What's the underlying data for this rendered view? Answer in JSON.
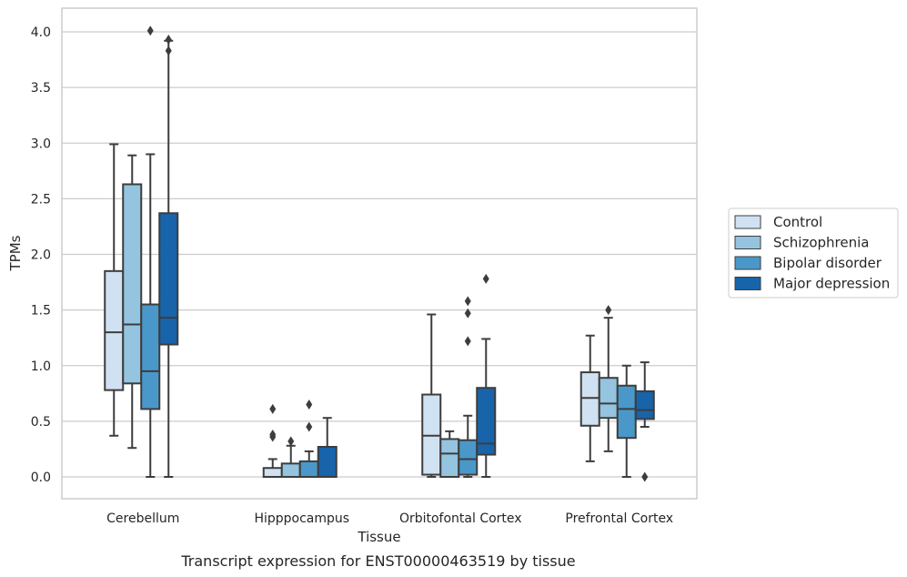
{
  "caption": "Transcript expression for ENST00000463519 by tissue",
  "chart_data": {
    "type": "box",
    "xlabel": "Tissue",
    "ylabel": "TPMs",
    "ylim": [
      -0.2,
      4.22
    ],
    "yticks": [
      0.0,
      0.5,
      1.0,
      1.5,
      2.0,
      2.5,
      3.0,
      3.5,
      4.0
    ],
    "ytick_labels": [
      "0.0",
      "0.5",
      "1.0",
      "1.5",
      "2.0",
      "2.5",
      "3.0",
      "3.5",
      "4.0"
    ],
    "grid": "horizontal",
    "legend_position": "right",
    "categories": [
      "Cerebellum",
      "Hipppocampus",
      "Orbitofontal Cortex",
      "Prefrontal Cortex"
    ],
    "series": [
      {
        "name": "Control",
        "color": "#d0e1f2",
        "boxes": [
          {
            "whislo": 0.37,
            "q1": 0.78,
            "med": 1.3,
            "q3": 1.85,
            "whishi": 2.99,
            "fliers": []
          },
          {
            "whislo": 0.0,
            "q1": 0.0,
            "med": 0.0,
            "q3": 0.08,
            "whishi": 0.16,
            "fliers": [
              0.36,
              0.38,
              0.61
            ]
          },
          {
            "whislo": 0.0,
            "q1": 0.02,
            "med": 0.37,
            "q3": 0.74,
            "whishi": 1.46,
            "fliers": []
          },
          {
            "whislo": 0.14,
            "q1": 0.46,
            "med": 0.71,
            "q3": 0.94,
            "whishi": 1.27,
            "fliers": []
          }
        ]
      },
      {
        "name": "Schizophrenia",
        "color": "#94c4df",
        "boxes": [
          {
            "whislo": 0.26,
            "q1": 0.84,
            "med": 1.37,
            "q3": 2.63,
            "whishi": 2.89,
            "fliers": []
          },
          {
            "whislo": 0.0,
            "q1": 0.0,
            "med": 0.0,
            "q3": 0.12,
            "whishi": 0.28,
            "fliers": [
              0.32
            ]
          },
          {
            "whislo": 0.0,
            "q1": 0.0,
            "med": 0.21,
            "q3": 0.34,
            "whishi": 0.41,
            "fliers": []
          },
          {
            "whislo": 0.23,
            "q1": 0.53,
            "med": 0.66,
            "q3": 0.89,
            "whishi": 1.43,
            "fliers": [
              1.5
            ]
          }
        ]
      },
      {
        "name": "Bipolar disorder",
        "color": "#4a98c9",
        "boxes": [
          {
            "whislo": 0.0,
            "q1": 0.61,
            "med": 0.95,
            "q3": 1.55,
            "whishi": 2.9,
            "fliers": [
              4.01
            ]
          },
          {
            "whislo": 0.0,
            "q1": 0.0,
            "med": 0.0,
            "q3": 0.14,
            "whishi": 0.23,
            "fliers": [
              0.45,
              0.65
            ]
          },
          {
            "whislo": 0.0,
            "q1": 0.02,
            "med": 0.16,
            "q3": 0.33,
            "whishi": 0.55,
            "fliers": [
              1.22,
              1.47,
              1.58
            ]
          },
          {
            "whislo": 0.0,
            "q1": 0.35,
            "med": 0.61,
            "q3": 0.82,
            "whishi": 1.0,
            "fliers": []
          }
        ]
      },
      {
        "name": "Major depression",
        "color": "#1764ab",
        "boxes": [
          {
            "whislo": 0.0,
            "q1": 1.19,
            "med": 1.43,
            "q3": 2.37,
            "whishi": 3.92,
            "fliers": [
              3.83,
              3.93
            ]
          },
          {
            "whislo": 0.0,
            "q1": 0.0,
            "med": 0.0,
            "q3": 0.27,
            "whishi": 0.53,
            "fliers": []
          },
          {
            "whislo": 0.0,
            "q1": 0.2,
            "med": 0.3,
            "q3": 0.8,
            "whishi": 1.24,
            "fliers": [
              1.78
            ]
          },
          {
            "whislo": 0.45,
            "q1": 0.52,
            "med": 0.6,
            "q3": 0.77,
            "whishi": 1.03,
            "fliers": [
              0.0
            ]
          }
        ]
      }
    ]
  }
}
